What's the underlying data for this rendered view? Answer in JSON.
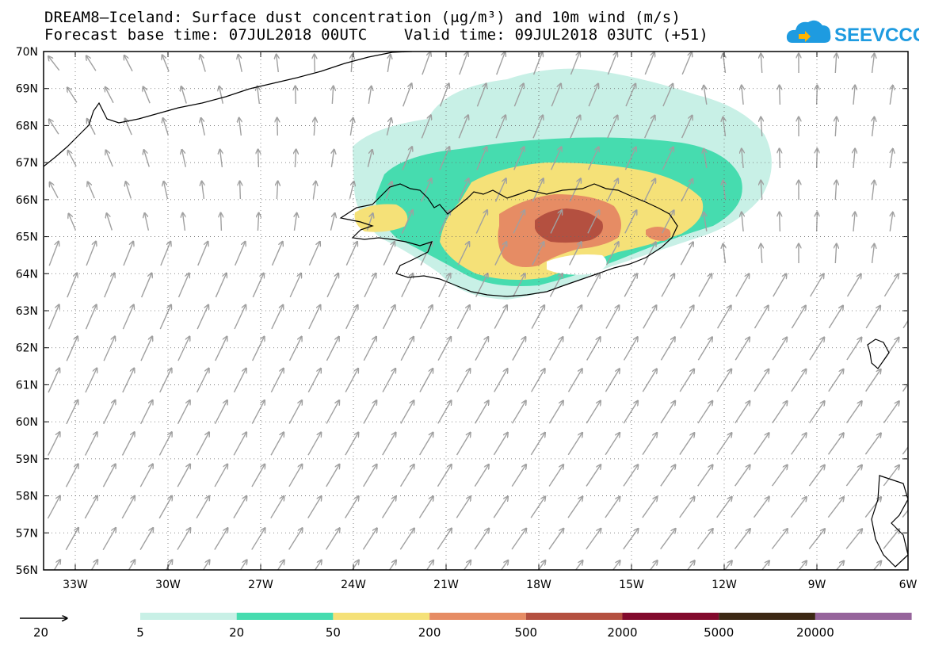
{
  "title_line1": "DREAM8–Iceland: Surface dust concentration (μg/m³) and 10m wind (m/s)",
  "title_line2": "Forecast base time: 07JUL2018 00UTC    Valid time: 09JUL2018 03UTC (+51)",
  "logo_text": "SEEVCCC",
  "latitudes": [
    "70N",
    "69N",
    "68N",
    "67N",
    "66N",
    "65N",
    "64N",
    "63N",
    "62N",
    "61N",
    "60N",
    "59N",
    "58N",
    "57N",
    "56N"
  ],
  "longitudes": [
    "33W",
    "30W",
    "27W",
    "24W",
    "21W",
    "18W",
    "15W",
    "12W",
    "9W",
    "6W"
  ],
  "wind_reference": {
    "label": "20"
  },
  "colorbar": {
    "levels": [
      "5",
      "20",
      "50",
      "200",
      "500",
      "2000",
      "5000",
      "20000"
    ],
    "colors": [
      "#c8f0e6",
      "#46dcaf",
      "#f5e178",
      "#e68c64",
      "#b45040",
      "#820a2d",
      "#3c2814",
      "#96649b"
    ]
  },
  "colors": {
    "wind_arrows": "#a0a0a0",
    "coastline": "#000000",
    "grid": "#555555"
  }
}
